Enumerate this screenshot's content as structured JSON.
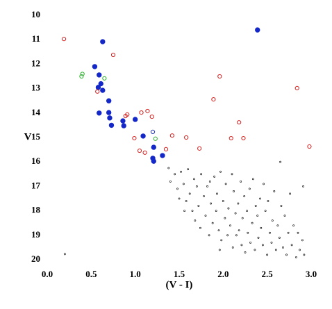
{
  "chart_data": {
    "type": "scatter",
    "x_label": "(V - I)",
    "y_label": "V",
    "xlim": [
      0,
      3
    ],
    "xticks": [
      {
        "value": 0,
        "label": "0.0"
      },
      0.5,
      {
        "value": 1,
        "label": "1.0"
      },
      1.5,
      {
        "value": 2,
        "label": "2.0"
      },
      2.5,
      {
        "value": 3,
        "label": "3.0"
      }
    ],
    "ylim": [
      20,
      10
    ],
    "yticks": [
      10,
      11,
      12,
      13,
      14,
      15,
      16,
      17,
      18,
      19,
      20
    ],
    "y_inverted": true,
    "grid": false,
    "series": [
      {
        "color": "#1428c8",
        "marker": "filled",
        "x": [
          0.63,
          2.39,
          0.54,
          0.59,
          0.61,
          0.58,
          0.63,
          0.7,
          0.59,
          0.7,
          0.71,
          0.73,
          0.86,
          0.87,
          1.0,
          1.09,
          1.21,
          1.31,
          1.2,
          1.21
        ],
        "values": [
          11.08,
          10.6,
          12.1,
          12.44,
          12.8,
          12.95,
          13.07,
          13.5,
          14.0,
          13.98,
          14.2,
          14.5,
          14.32,
          14.52,
          14.26,
          14.94,
          15.4,
          15.74,
          15.85,
          15.97
        ]
      },
      {
        "color": "#d42020",
        "marker": "open",
        "x": [
          0.19,
          0.75,
          0.57,
          0.91,
          0.89,
          1.07,
          1.14,
          1.19,
          1.96,
          1.89,
          2.84,
          2.18,
          2.23,
          2.09,
          1.42,
          1.58,
          1.73,
          0.99,
          1.05,
          1.11,
          1.35,
          2.98
        ],
        "values": [
          10.97,
          11.62,
          13.12,
          14.06,
          14.12,
          13.98,
          13.92,
          14.15,
          12.5,
          13.44,
          12.98,
          14.38,
          15.03,
          15.03,
          14.92,
          15.0,
          15.45,
          15.03,
          15.54,
          15.62,
          15.48,
          15.37
        ]
      },
      {
        "color": "#30b030",
        "marker": "open",
        "x": [
          0.39,
          0.4,
          0.65,
          1.23
        ],
        "values": [
          12.5,
          12.4,
          12.58,
          15.05
        ]
      },
      {
        "color": "#2030c0",
        "marker": "open",
        "x": [
          1.2
        ],
        "values": [
          14.77
        ]
      },
      {
        "color": "#000000",
        "marker": "dot",
        "x": [
          1.38,
          1.45,
          1.52,
          1.4,
          1.48,
          1.55,
          1.6,
          1.62,
          1.58,
          1.67,
          1.7,
          1.72,
          1.65,
          1.75,
          1.78,
          1.8,
          1.82,
          1.85,
          1.86,
          1.88,
          1.9,
          1.92,
          1.93,
          1.95,
          1.97,
          1.98,
          2.0,
          2.02,
          2.03,
          2.05,
          2.06,
          2.08,
          2.1,
          2.11,
          2.12,
          2.14,
          2.15,
          2.17,
          2.18,
          2.2,
          2.21,
          2.22,
          2.24,
          2.25,
          2.27,
          2.28,
          2.3,
          2.31,
          2.33,
          2.34,
          2.36,
          2.37,
          2.39,
          2.4,
          2.42,
          2.43,
          2.45,
          2.46,
          2.48,
          2.5,
          2.51,
          2.53,
          2.55,
          2.56,
          2.58,
          2.6,
          2.62,
          2.64,
          2.65,
          2.66,
          2.68,
          2.7,
          2.72,
          2.74,
          2.76,
          2.78,
          2.8,
          2.83,
          2.85,
          2.87,
          2.9,
          2.91,
          2.92,
          1.5,
          1.56,
          1.68,
          1.74,
          1.84,
          1.96,
          0.2
        ],
        "values": [
          16.25,
          16.5,
          16.4,
          16.8,
          17.1,
          16.9,
          16.3,
          17.3,
          17.6,
          16.7,
          17.0,
          17.8,
          18.0,
          16.5,
          17.4,
          18.2,
          17.0,
          16.8,
          17.7,
          18.5,
          16.6,
          18.0,
          17.3,
          18.8,
          16.4,
          19.2,
          17.6,
          18.3,
          16.9,
          19.0,
          17.9,
          18.6,
          16.5,
          19.5,
          17.2,
          18.1,
          19.0,
          17.7,
          18.8,
          16.8,
          19.4,
          18.3,
          17.4,
          19.7,
          18.0,
          18.9,
          17.1,
          19.3,
          18.5,
          16.7,
          19.6,
          17.8,
          18.2,
          19.1,
          17.5,
          18.7,
          19.4,
          16.9,
          18.0,
          19.8,
          17.6,
          18.9,
          19.3,
          18.4,
          17.2,
          19.6,
          18.6,
          19.1,
          16.0,
          17.8,
          19.5,
          18.2,
          19.8,
          18.9,
          17.3,
          19.4,
          18.6,
          19.9,
          18.9,
          19.6,
          19.2,
          17.0,
          19.8,
          17.5,
          18.0,
          18.4,
          18.7,
          19.0,
          19.6,
          19.77
        ]
      }
    ]
  }
}
